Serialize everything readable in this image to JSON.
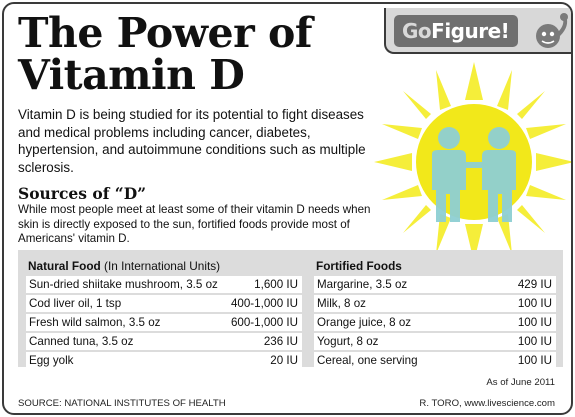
{
  "header": {
    "title_line1": "The Power of",
    "title_line2": "Vitamin D",
    "badge_go": "Go",
    "badge_figure": "Figure!"
  },
  "intro": "Vitamin D is being studied for its potential to fight diseases and medical problems including cancer, diabetes, hypertension, and autoimmune conditions such as multiple sclerosis.",
  "sources": {
    "heading": "Sources of “D”",
    "description": "While most people meet at least some of their vitamin D needs when skin is directly exposed to the sun, fortified foods provide most of Americans' vitamin D."
  },
  "natural": {
    "heading": "Natural Food",
    "heading_units": " (In International Units)",
    "rows": [
      {
        "food": "Sun-dried shiitake mushroom, 3.5 oz",
        "amount": "1,600 IU"
      },
      {
        "food": "Cod liver oil, 1 tsp",
        "amount": "400-1,000 IU"
      },
      {
        "food": "Fresh wild salmon, 3.5 oz",
        "amount": "600-1,000 IU"
      },
      {
        "food": "Canned tuna, 3.5 oz",
        "amount": "236 IU"
      },
      {
        "food": "Egg yolk",
        "amount": "20 IU"
      }
    ]
  },
  "fortified": {
    "heading": "Fortified Foods",
    "rows": [
      {
        "food": "Margarine, 3.5 oz",
        "amount": "429 IU"
      },
      {
        "food": "Milk, 8 oz",
        "amount": "100 IU"
      },
      {
        "food": "Orange juice, 8 oz",
        "amount": "100 IU"
      },
      {
        "food": "Yogurt, 8 oz",
        "amount": "100 IU"
      },
      {
        "food": "Cereal, one serving",
        "amount": "100 IU"
      }
    ]
  },
  "footer": {
    "as_of": "As of June 2011",
    "source": "SOURCE: NATIONAL INSTITUTES OF HEALTH",
    "credit": "R. TORO, www.livescience.com"
  },
  "colors": {
    "sun": "#f2e81a",
    "sun_ray": "#f5ee3a",
    "figure": "#8ecfd3",
    "panel": "#dcdcdc",
    "badge": "#6f6f6f"
  },
  "icons": [
    "sun-icon",
    "people-icon",
    "mascot-icon"
  ]
}
